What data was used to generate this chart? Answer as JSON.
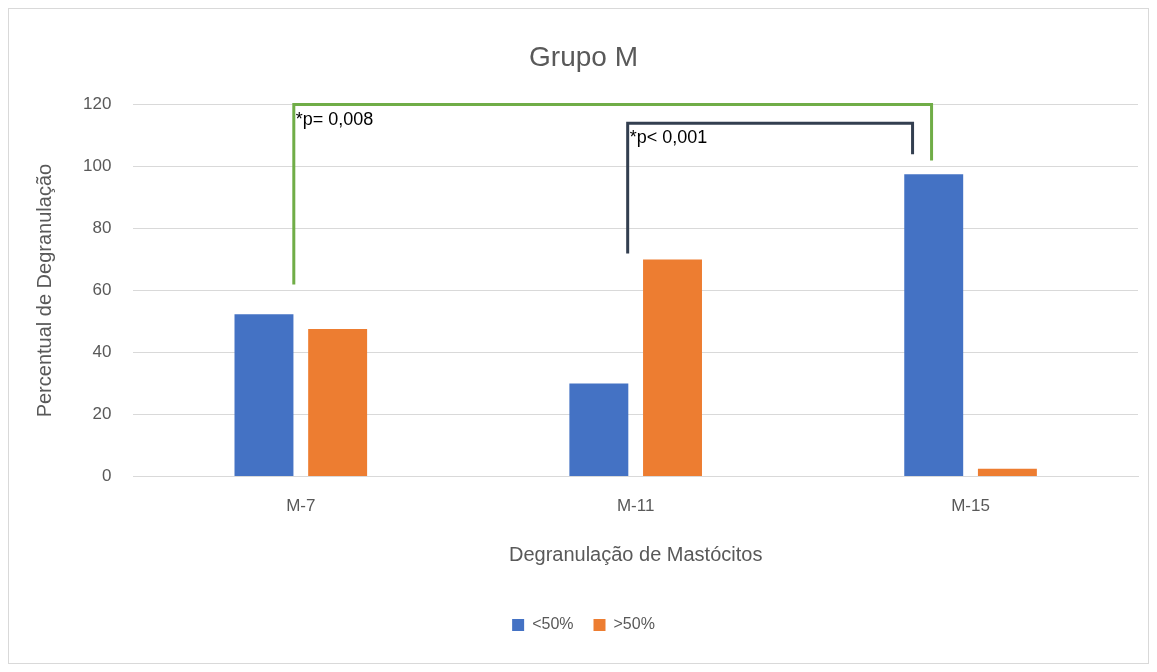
{
  "chart_data": {
    "type": "bar",
    "title": "Grupo M",
    "xlabel": "Degranulação de Mastócitos",
    "ylabel": "Percentual de Degranulação",
    "categories": [
      "M-7",
      "M-11",
      "M-15"
    ],
    "series": [
      {
        "name": "<50%",
        "color": "#4472c4",
        "values": [
          52.4,
          30,
          97.5
        ]
      },
      {
        "name": ">50%",
        "color": "#ed7d31",
        "values": [
          47.6,
          70,
          2.5
        ]
      }
    ],
    "ylim": [
      0,
      120
    ],
    "yticks": [
      0,
      20,
      40,
      60,
      80,
      100,
      120
    ],
    "grid": "y",
    "legend": "bottom",
    "annotations": [
      "*p= 0,008",
      "*p< 0,001"
    ]
  }
}
